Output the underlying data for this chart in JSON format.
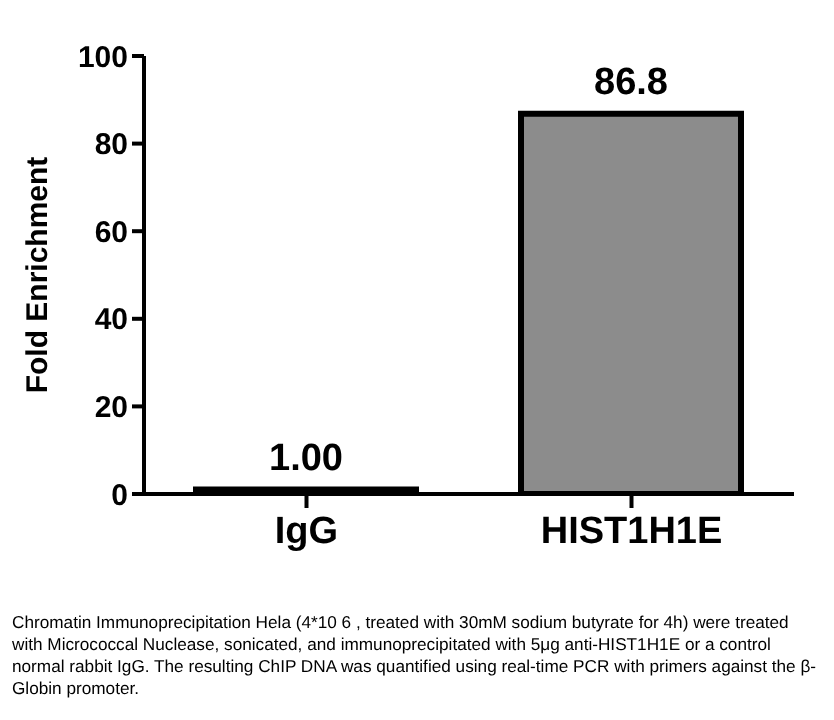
{
  "chart_data": {
    "type": "bar",
    "ylabel": "Fold Enrichment",
    "categories": [
      "IgG",
      "HIST1H1E"
    ],
    "values": [
      1.0,
      86.8
    ],
    "value_labels": [
      "1.00",
      "86.8"
    ],
    "color": "#8c8c8c",
    "ylim": [
      0,
      100
    ],
    "yticks": [
      0,
      20,
      40,
      60,
      80,
      100
    ],
    "grid": false,
    "legend": false,
    "annotations": [
      "Chromatin Immunoprecipitation Hela (4*10 6 , treated with 30mM sodium butyrate for 4h) were treated with Micrococcal Nuclease, sonicated, and immunoprecipitated with 5μg anti-HIST1H1E or a control normal rabbit IgG. The resulting ChIP DNA was quantified using real-time PCR with primers against the β-Globin promoter."
    ]
  }
}
